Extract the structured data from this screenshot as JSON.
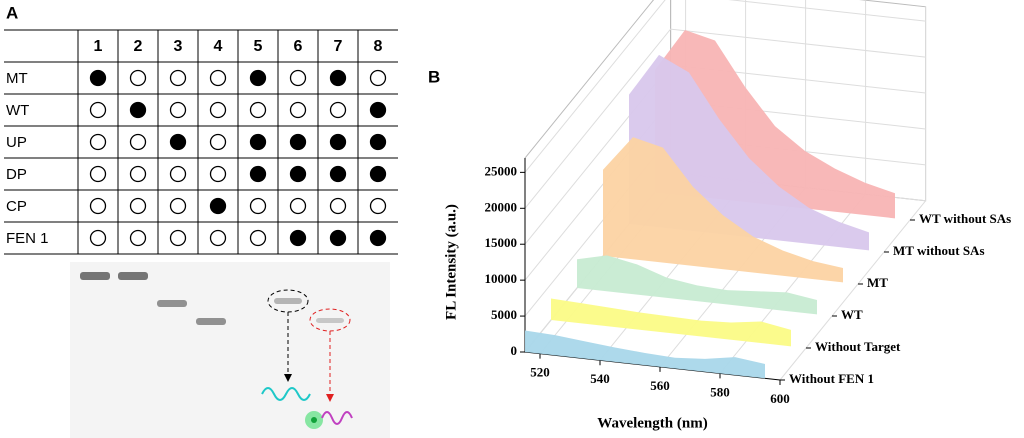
{
  "panel_a": {
    "label": "A",
    "table": {
      "header": [
        "1",
        "2",
        "3",
        "4",
        "5",
        "6",
        "7",
        "8"
      ],
      "rows": [
        {
          "label": "MT",
          "cells": [
            1,
            0,
            0,
            0,
            1,
            0,
            1,
            0
          ]
        },
        {
          "label": "WT",
          "cells": [
            0,
            1,
            0,
            0,
            0,
            0,
            0,
            1
          ]
        },
        {
          "label": "UP",
          "cells": [
            0,
            0,
            1,
            0,
            1,
            1,
            1,
            1
          ]
        },
        {
          "label": "DP",
          "cells": [
            0,
            0,
            0,
            0,
            1,
            1,
            1,
            1
          ]
        },
        {
          "label": "CP",
          "cells": [
            0,
            0,
            0,
            1,
            0,
            0,
            0,
            0
          ]
        },
        {
          "label": "FEN 1",
          "cells": [
            0,
            0,
            0,
            0,
            0,
            1,
            1,
            1
          ]
        }
      ]
    }
  },
  "chart_data": {
    "type": "area3d",
    "label": "B",
    "xlabel": "Wavelength (nm)",
    "ylabel": "FL Intensity (a.u.)",
    "x": [
      515,
      525,
      535,
      545,
      555,
      565,
      575,
      585,
      595
    ],
    "xlim": [
      515,
      600
    ],
    "xticks": [
      520,
      540,
      560,
      580,
      600
    ],
    "ylim": [
      0,
      27000
    ],
    "yticks": [
      0,
      5000,
      10000,
      15000,
      20000,
      25000
    ],
    "series": [
      {
        "name": "Without FEN 1",
        "color": "#a9d7ea",
        "values": [
          3000,
          2800,
          2400,
          2000,
          1700,
          1500,
          1800,
          2500,
          2000
        ]
      },
      {
        "name": "Without Target",
        "color": "#fbfb86",
        "values": [
          3000,
          2800,
          2600,
          2400,
          2300,
          2200,
          2400,
          3000,
          2300
        ]
      },
      {
        "name": "WT",
        "color": "#c7ebd2",
        "values": [
          4000,
          5000,
          4200,
          2800,
          2200,
          2000,
          2300,
          2600,
          2000
        ]
      },
      {
        "name": "MT",
        "color": "#fcd3a3",
        "values": [
          12000,
          17000,
          16000,
          11000,
          7500,
          5000,
          3500,
          2500,
          2000
        ]
      },
      {
        "name": "MT without SAs",
        "color": "#d8c7ec",
        "values": [
          18000,
          24000,
          22000,
          16000,
          11000,
          7500,
          5000,
          3500,
          2500
        ]
      },
      {
        "name": "WT without SAs",
        "color": "#f8b4b4",
        "values": [
          17000,
          23000,
          22000,
          16000,
          11000,
          8000,
          6000,
          4500,
          3500
        ]
      }
    ]
  }
}
